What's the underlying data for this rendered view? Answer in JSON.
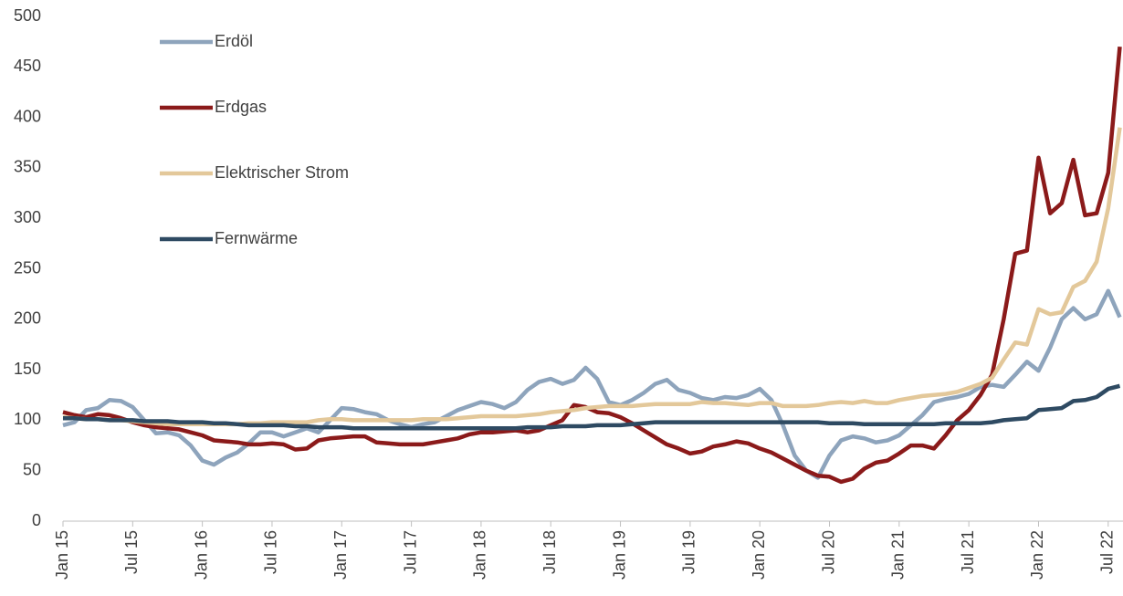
{
  "chart_data": {
    "type": "line",
    "categories": [
      "Jan 15",
      null,
      null,
      null,
      null,
      null,
      "Jul 15",
      null,
      null,
      null,
      null,
      null,
      "Jan 16",
      null,
      null,
      null,
      null,
      null,
      "Jul 16",
      null,
      null,
      null,
      null,
      null,
      "Jan 17",
      null,
      null,
      null,
      null,
      null,
      "Jul 17",
      null,
      null,
      null,
      null,
      null,
      "Jan 18",
      null,
      null,
      null,
      null,
      null,
      "Jul 18",
      null,
      null,
      null,
      null,
      null,
      "Jan 19",
      null,
      null,
      null,
      null,
      null,
      "Jul 19",
      null,
      null,
      null,
      null,
      null,
      "Jan 20",
      null,
      null,
      null,
      null,
      null,
      "Jul 20",
      null,
      null,
      null,
      null,
      null,
      "Jan 21",
      null,
      null,
      null,
      null,
      null,
      "Jul 21",
      null,
      null,
      null,
      null,
      null,
      "Jan 22",
      null,
      null,
      null,
      null,
      null,
      "Jul 22",
      null
    ],
    "series": [
      {
        "name": "Erdöl",
        "color": "#8ea4bc",
        "values": [
          95,
          98,
          110,
          112,
          120,
          119,
          113,
          100,
          87,
          88,
          85,
          75,
          60,
          56,
          63,
          68,
          77,
          88,
          88,
          84,
          88,
          92,
          88,
          100,
          112,
          111,
          108,
          106,
          100,
          96,
          93,
          96,
          98,
          104,
          110,
          114,
          118,
          116,
          112,
          118,
          130,
          138,
          141,
          136,
          140,
          152,
          141,
          118,
          115,
          120,
          127,
          136,
          140,
          130,
          127,
          122,
          120,
          123,
          122,
          125,
          131,
          120,
          95,
          65,
          50,
          43,
          65,
          80,
          84,
          82,
          78,
          80,
          85,
          95,
          105,
          118,
          121,
          123,
          126,
          133,
          135,
          133,
          145,
          158,
          149,
          172,
          200,
          211,
          200,
          205,
          228,
          202
        ]
      },
      {
        "name": "Erdgas",
        "color": "#8b1a1a",
        "values": [
          108,
          105,
          103,
          106,
          105,
          102,
          98,
          95,
          93,
          92,
          91,
          88,
          85,
          80,
          79,
          78,
          76,
          76,
          77,
          76,
          71,
          72,
          80,
          82,
          83,
          84,
          84,
          78,
          77,
          76,
          76,
          76,
          78,
          80,
          82,
          86,
          88,
          88,
          89,
          90,
          88,
          90,
          95,
          100,
          115,
          113,
          108,
          107,
          103,
          97,
          90,
          83,
          76,
          72,
          67,
          69,
          74,
          76,
          79,
          77,
          72,
          68,
          62,
          56,
          50,
          45,
          44,
          39,
          42,
          52,
          58,
          60,
          67,
          75,
          75,
          72,
          85,
          100,
          110,
          125,
          145,
          200,
          265,
          268,
          360,
          305,
          315,
          358,
          303,
          305,
          345,
          470
        ]
      },
      {
        "name": "Elektrischer Strom",
        "color": "#e3c89a",
        "values": [
          103,
          102,
          101,
          101,
          100,
          100,
          99,
          98,
          97,
          96,
          96,
          96,
          96,
          96,
          96,
          96,
          97,
          97,
          98,
          98,
          98,
          98,
          100,
          101,
          101,
          100,
          100,
          100,
          100,
          100,
          100,
          101,
          101,
          101,
          102,
          103,
          104,
          104,
          104,
          104,
          105,
          106,
          108,
          109,
          110,
          112,
          113,
          114,
          114,
          114,
          115,
          116,
          116,
          116,
          116,
          118,
          117,
          117,
          116,
          115,
          117,
          117,
          114,
          114,
          114,
          115,
          117,
          118,
          117,
          119,
          117,
          117,
          120,
          122,
          124,
          125,
          126,
          128,
          132,
          136,
          142,
          160,
          177,
          175,
          210,
          205,
          207,
          232,
          238,
          257,
          310,
          390
        ]
      },
      {
        "name": "Fernwärme",
        "color": "#2e4a62",
        "values": [
          102,
          102,
          101,
          101,
          100,
          100,
          100,
          99,
          99,
          99,
          98,
          98,
          98,
          97,
          97,
          96,
          95,
          95,
          95,
          95,
          94,
          94,
          93,
          93,
          93,
          92,
          92,
          92,
          92,
          92,
          92,
          92,
          92,
          92,
          92,
          92,
          92,
          92,
          92,
          92,
          93,
          93,
          93,
          94,
          94,
          94,
          95,
          95,
          95,
          96,
          97,
          98,
          98,
          98,
          98,
          98,
          98,
          98,
          98,
          98,
          98,
          98,
          98,
          98,
          98,
          98,
          97,
          97,
          97,
          96,
          96,
          96,
          96,
          96,
          96,
          96,
          97,
          97,
          97,
          97,
          98,
          100,
          101,
          102,
          110,
          111,
          112,
          119,
          120,
          123,
          131,
          134
        ]
      }
    ],
    "ylim": [
      0,
      500
    ],
    "yticks": [
      0,
      50,
      100,
      150,
      200,
      250,
      300,
      350,
      400,
      450,
      500
    ],
    "grid": false,
    "legend": "upper left"
  }
}
